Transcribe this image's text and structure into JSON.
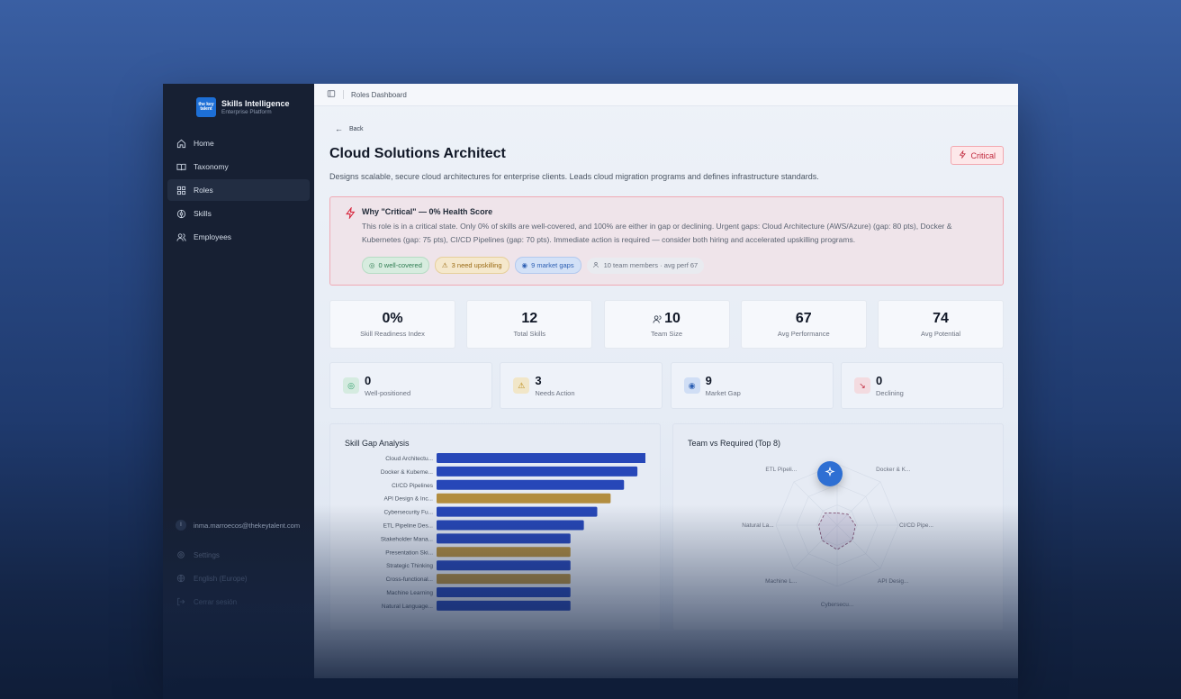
{
  "brand": {
    "logo_text": "the key talent",
    "title": "Skills Intelligence",
    "subtitle": "Enterprise Platform"
  },
  "sidebar": {
    "items": [
      {
        "label": "Home",
        "icon": "home-icon"
      },
      {
        "label": "Taxonomy",
        "icon": "book-icon"
      },
      {
        "label": "Roles",
        "icon": "grid-icon",
        "active": true
      },
      {
        "label": "Skills",
        "icon": "target-icon"
      },
      {
        "label": "Employees",
        "icon": "users-icon"
      }
    ],
    "user_initial": "I",
    "user_email": "inma.marroecos@thekeytalent.com",
    "bottom": [
      {
        "label": "Settings",
        "icon": "gear-icon"
      },
      {
        "label": "English (Europe)",
        "icon": "globe-icon"
      },
      {
        "label": "Cerrar sesión",
        "icon": "logout-icon"
      }
    ]
  },
  "topbar": {
    "breadcrumb": "Roles Dashboard"
  },
  "page": {
    "back_label": "Back",
    "title": "Cloud Solutions Architect",
    "badge": "Critical",
    "description": "Designs scalable, secure cloud architectures for enterprise clients. Leads cloud migration programs and defines infrastructure standards."
  },
  "alert": {
    "title": "Why \"Critical\" — 0% Health Score",
    "text": "This role is in a critical state. Only 0% of skills are well-covered, and 100% are either in gap or declining. Urgent gaps: Cloud Architecture (AWS/Azure) (gap: 80 pts), Docker & Kubernetes (gap: 75 pts), CI/CD Pipelines (gap: 70 pts). Immediate action is required — consider both hiring and accelerated upskilling programs.",
    "pills": {
      "well_covered": "0 well-covered",
      "upskilling": "3 need upskilling",
      "market_gaps": "9 market gaps",
      "team": "10 team members · avg perf 67"
    }
  },
  "stats": [
    {
      "value": "0%",
      "label": "Skill Readiness Index"
    },
    {
      "value": "12",
      "label": "Total Skills"
    },
    {
      "value": "10",
      "label": "Team Size"
    },
    {
      "value": "67",
      "label": "Avg Performance"
    },
    {
      "value": "74",
      "label": "Avg Potential"
    }
  ],
  "status_cards": [
    {
      "value": "0",
      "label": "Well-positioned",
      "color": "#2f9e6a",
      "bg": "#d5ebe0"
    },
    {
      "value": "3",
      "label": "Needs Action",
      "color": "#b7860f",
      "bg": "#f1e6c8"
    },
    {
      "value": "9",
      "label": "Market Gap",
      "color": "#2d5fb3",
      "bg": "#d0def5"
    },
    {
      "value": "0",
      "label": "Declining",
      "color": "#c0283c",
      "bg": "#f3dbe0"
    }
  ],
  "chart_data": [
    {
      "type": "bar",
      "title": "Skill Gap Analysis",
      "orientation": "horizontal",
      "categories": [
        "Cloud Architectu...",
        "Docker & Kubeme...",
        "CI/CD Pipelines",
        "API Design & Inc...",
        "Cybersecurity Fu...",
        "ETL Pipeline Des...",
        "Stakeholder Mana...",
        "Presentation Ski...",
        "Strategic Thinking",
        "Cross-functional...",
        "Machine Learning",
        "Natural Language..."
      ],
      "values": [
        80,
        75,
        70,
        65,
        60,
        55,
        50,
        50,
        50,
        50,
        50,
        50
      ],
      "colors": [
        "#2747b8",
        "#2747b8",
        "#2747b8",
        "#b28d3f",
        "#2747b8",
        "#2747b8",
        "#2747b8",
        "#b28d3f",
        "#2747b8",
        "#b28d3f",
        "#2747b8",
        "#2747b8"
      ]
    },
    {
      "type": "radar",
      "title": "Team vs Required (Top 8)",
      "axes": [
        "Cloud Arch...",
        "Docker & K...",
        "CI/CD Pipe...",
        "API Desig...",
        "Cybersecu...",
        "Machine L...",
        "Natural La...",
        "ETL Pipeli..."
      ],
      "series": [
        {
          "values": [
            20,
            25,
            30,
            35,
            40,
            35,
            30,
            28
          ]
        }
      ]
    }
  ]
}
